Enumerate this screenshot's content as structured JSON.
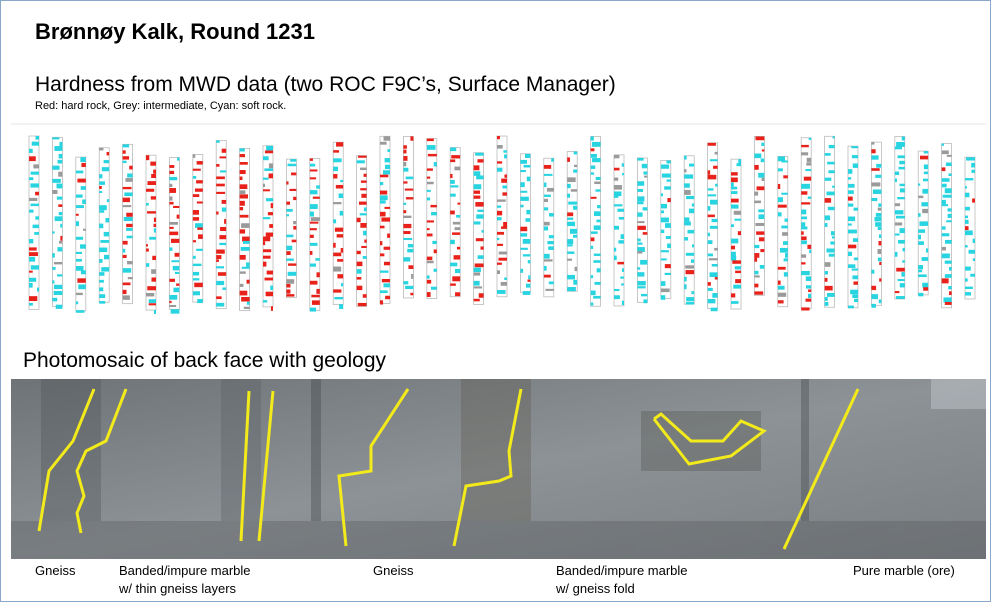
{
  "header": {
    "title": "Brønnøy Kalk, Round 1231"
  },
  "mwd": {
    "title": "Hardness from MWD data (two ROC F9C’s, Surface Manager)",
    "note": "Red: hard rock, Grey: intermediate,  Cyan: soft rock."
  },
  "photo": {
    "title": "Photomosaic of back face with geology",
    "labels": [
      {
        "lines": [
          "Gneiss"
        ]
      },
      {
        "lines": [
          "Banded/impure marble",
          "w/ thin gneiss layers"
        ]
      },
      {
        "lines": [
          "Gneiss"
        ]
      },
      {
        "lines": [
          "Banded/impure marble",
          "w/ gneiss fold"
        ]
      },
      {
        "lines": [
          "Pure marble (ore)"
        ]
      }
    ]
  }
}
